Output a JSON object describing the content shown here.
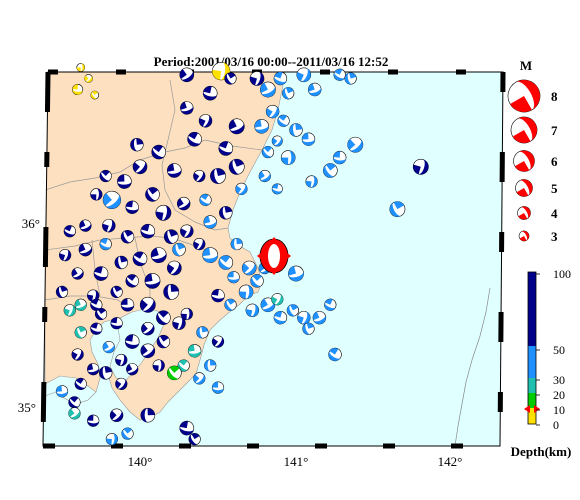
{
  "title": "Period:2001/03/16 00:00--2011/03/16 12:52",
  "axis": {
    "lon_ticks": [
      "140°",
      "141°",
      "142°"
    ],
    "lat_ticks": [
      "36°",
      "35°"
    ]
  },
  "magnitude_legend": {
    "header": "M",
    "items": [
      "8",
      "7",
      "6",
      "5",
      "4",
      "3"
    ]
  },
  "depth_scale": {
    "label": "Depth(km)",
    "ticks": [
      "100",
      "50",
      "30",
      "20",
      "10",
      "0"
    ],
    "colors": {
      "deep": "#00008b",
      "mid": "#1e90ff",
      "shallow": "#20c0b0",
      "green": "#00cc00",
      "surface": "#ffe000"
    }
  },
  "colors": {
    "land": "#fde0bf",
    "sea": "#e0ffff",
    "highlight": "#ff0000"
  },
  "events": [
    {
      "lon": 139.62,
      "lat": 36.84,
      "c": "yellow",
      "m": 3
    },
    {
      "lon": 139.67,
      "lat": 36.78,
      "c": "yellow",
      "m": 3
    },
    {
      "lon": 139.6,
      "lat": 36.72,
      "c": "yellow",
      "m": 3.2
    },
    {
      "lon": 139.71,
      "lat": 36.69,
      "c": "yellow",
      "m": 3
    },
    {
      "lon": 140.52,
      "lat": 36.82,
      "c": "yellow",
      "m": 3.8
    },
    {
      "lon": 140.3,
      "lat": 36.8,
      "c": "navy",
      "m": 3.5
    },
    {
      "lon": 140.45,
      "lat": 36.7,
      "c": "navy",
      "m": 3.5
    },
    {
      "lon": 140.58,
      "lat": 36.78,
      "c": "navy",
      "m": 3.3
    },
    {
      "lon": 140.75,
      "lat": 36.78,
      "c": "navy",
      "m": 3.5
    },
    {
      "lon": 140.82,
      "lat": 36.72,
      "c": "blue",
      "m": 3.6
    },
    {
      "lon": 140.9,
      "lat": 36.78,
      "c": "blue",
      "m": 3.4
    },
    {
      "lon": 140.95,
      "lat": 36.7,
      "c": "blue",
      "m": 3.3
    },
    {
      "lon": 141.05,
      "lat": 36.8,
      "c": "blue",
      "m": 3.5
    },
    {
      "lon": 141.12,
      "lat": 36.72,
      "c": "blue",
      "m": 3.4
    },
    {
      "lon": 141.28,
      "lat": 36.8,
      "c": "blue",
      "m": 3.3
    },
    {
      "lon": 141.35,
      "lat": 36.78,
      "c": "blue",
      "m": 3.3
    },
    {
      "lon": 140.85,
      "lat": 36.6,
      "c": "blue",
      "m": 3.4
    },
    {
      "lon": 140.78,
      "lat": 36.52,
      "c": "blue",
      "m": 3.5
    },
    {
      "lon": 140.92,
      "lat": 36.55,
      "c": "blue",
      "m": 3.3
    },
    {
      "lon": 141.0,
      "lat": 36.5,
      "c": "blue",
      "m": 3.4
    },
    {
      "lon": 140.88,
      "lat": 36.44,
      "c": "blue",
      "m": 3.2
    },
    {
      "lon": 141.08,
      "lat": 36.45,
      "c": "blue",
      "m": 3.4
    },
    {
      "lon": 140.82,
      "lat": 36.38,
      "c": "blue",
      "m": 3.3
    },
    {
      "lon": 140.95,
      "lat": 36.35,
      "c": "blue",
      "m": 3.5
    },
    {
      "lon": 141.38,
      "lat": 36.42,
      "c": "blue",
      "m": 3.6
    },
    {
      "lon": 141.28,
      "lat": 36.35,
      "c": "blue",
      "m": 3.4
    },
    {
      "lon": 141.22,
      "lat": 36.28,
      "c": "blue",
      "m": 3.5
    },
    {
      "lon": 141.1,
      "lat": 36.22,
      "c": "blue",
      "m": 3.3
    },
    {
      "lon": 140.8,
      "lat": 36.25,
      "c": "blue",
      "m": 3.3
    },
    {
      "lon": 140.88,
      "lat": 36.18,
      "c": "blue",
      "m": 3.2
    },
    {
      "lon": 141.65,
      "lat": 36.07,
      "c": "blue",
      "m": 3.6
    },
    {
      "lon": 141.8,
      "lat": 36.3,
      "c": "navy",
      "m": 3.6
    },
    {
      "lon": 140.62,
      "lat": 36.52,
      "c": "navy",
      "m": 3.6
    },
    {
      "lon": 140.55,
      "lat": 36.4,
      "c": "navy",
      "m": 3.5
    },
    {
      "lon": 140.62,
      "lat": 36.3,
      "c": "navy",
      "m": 3.6
    },
    {
      "lon": 140.42,
      "lat": 36.55,
      "c": "navy",
      "m": 3.4
    },
    {
      "lon": 140.3,
      "lat": 36.62,
      "c": "navy",
      "m": 3.4
    },
    {
      "lon": 140.35,
      "lat": 36.45,
      "c": "navy",
      "m": 3.5
    },
    {
      "lon": 140.5,
      "lat": 36.25,
      "c": "navy",
      "m": 3.6
    },
    {
      "lon": 140.38,
      "lat": 36.25,
      "c": "navy",
      "m": 3.3
    },
    {
      "lon": 140.22,
      "lat": 36.28,
      "c": "navy",
      "m": 3.5
    },
    {
      "lon": 140.12,
      "lat": 36.38,
      "c": "navy",
      "m": 3.5
    },
    {
      "lon": 139.98,
      "lat": 36.42,
      "c": "navy",
      "m": 3.4
    },
    {
      "lon": 140.0,
      "lat": 36.3,
      "c": "navy",
      "m": 3.5
    },
    {
      "lon": 139.9,
      "lat": 36.22,
      "c": "navy",
      "m": 3.5
    },
    {
      "lon": 139.78,
      "lat": 36.25,
      "c": "navy",
      "m": 3.3
    },
    {
      "lon": 139.72,
      "lat": 36.15,
      "c": "navy",
      "m": 3.3
    },
    {
      "lon": 139.82,
      "lat": 36.12,
      "c": "blue",
      "m": 3.8
    },
    {
      "lon": 139.95,
      "lat": 36.08,
      "c": "navy",
      "m": 3.4
    },
    {
      "lon": 140.08,
      "lat": 36.15,
      "c": "navy",
      "m": 3.5
    },
    {
      "lon": 140.15,
      "lat": 36.05,
      "c": "navy",
      "m": 3.6
    },
    {
      "lon": 140.28,
      "lat": 36.1,
      "c": "navy",
      "m": 3.4
    },
    {
      "lon": 140.05,
      "lat": 35.95,
      "c": "navy",
      "m": 3.5
    },
    {
      "lon": 139.92,
      "lat": 35.92,
      "c": "navy",
      "m": 3.4
    },
    {
      "lon": 139.8,
      "lat": 35.98,
      "c": "navy",
      "m": 3.4
    },
    {
      "lon": 139.65,
      "lat": 35.98,
      "c": "navy",
      "m": 3.3
    },
    {
      "lon": 139.55,
      "lat": 35.95,
      "c": "navy",
      "m": 3.3
    },
    {
      "lon": 140.2,
      "lat": 35.92,
      "c": "navy",
      "m": 3.5
    },
    {
      "lon": 140.3,
      "lat": 35.95,
      "c": "navy",
      "m": 3.4
    },
    {
      "lon": 140.12,
      "lat": 35.82,
      "c": "navy",
      "m": 3.6
    },
    {
      "lon": 140.0,
      "lat": 35.8,
      "c": "navy",
      "m": 3.5
    },
    {
      "lon": 139.88,
      "lat": 35.78,
      "c": "navy",
      "m": 3.4
    },
    {
      "lon": 140.22,
      "lat": 35.75,
      "c": "navy",
      "m": 3.5
    },
    {
      "lon": 140.08,
      "lat": 35.68,
      "c": "navy",
      "m": 3.6
    },
    {
      "lon": 139.95,
      "lat": 35.68,
      "c": "navy",
      "m": 3.4
    },
    {
      "lon": 140.2,
      "lat": 35.62,
      "c": "navy",
      "m": 3.6
    },
    {
      "lon": 140.05,
      "lat": 35.55,
      "c": "navy",
      "m": 3.6
    },
    {
      "lon": 139.92,
      "lat": 35.55,
      "c": "navy",
      "m": 3.4
    },
    {
      "lon": 140.15,
      "lat": 35.48,
      "c": "navy",
      "m": 3.5
    },
    {
      "lon": 140.3,
      "lat": 35.5,
      "c": "navy",
      "m": 3.3
    },
    {
      "lon": 140.05,
      "lat": 35.42,
      "c": "navy",
      "m": 3.4
    },
    {
      "lon": 139.85,
      "lat": 35.45,
      "c": "navy",
      "m": 3.3
    },
    {
      "lon": 139.75,
      "lat": 35.5,
      "c": "navy",
      "m": 3.3
    },
    {
      "lon": 139.7,
      "lat": 35.6,
      "c": "navy",
      "m": 3.3
    },
    {
      "lon": 139.6,
      "lat": 35.72,
      "c": "navy",
      "m": 3.3
    },
    {
      "lon": 139.75,
      "lat": 35.72,
      "c": "navy",
      "m": 3.5
    },
    {
      "lon": 139.85,
      "lat": 35.62,
      "c": "navy",
      "m": 3.3
    },
    {
      "lon": 139.52,
      "lat": 35.82,
      "c": "navy",
      "m": 3.3
    },
    {
      "lon": 139.65,
      "lat": 35.85,
      "c": "navy",
      "m": 3.4
    },
    {
      "lon": 139.78,
      "lat": 35.88,
      "c": "blue",
      "m": 3.3
    },
    {
      "lon": 140.25,
      "lat": 35.85,
      "c": "blue",
      "m": 3.4
    },
    {
      "lon": 140.38,
      "lat": 35.88,
      "c": "navy",
      "m": 3.3
    },
    {
      "lon": 140.45,
      "lat": 36.0,
      "c": "blue",
      "m": 3.4
    },
    {
      "lon": 140.42,
      "lat": 36.12,
      "c": "blue",
      "m": 3.3
    },
    {
      "lon": 140.55,
      "lat": 36.05,
      "c": "navy",
      "m": 3.4
    },
    {
      "lon": 140.65,
      "lat": 36.18,
      "c": "blue",
      "m": 3.3
    },
    {
      "lon": 140.45,
      "lat": 35.82,
      "c": "blue",
      "m": 3.6
    },
    {
      "lon": 140.55,
      "lat": 35.78,
      "c": "blue",
      "m": 3.5
    },
    {
      "lon": 140.62,
      "lat": 35.88,
      "c": "blue",
      "m": 3.3
    },
    {
      "lon": 140.7,
      "lat": 35.75,
      "c": "blue",
      "m": 3.5
    },
    {
      "lon": 140.6,
      "lat": 35.7,
      "c": "blue",
      "m": 3.3
    },
    {
      "lon": 140.75,
      "lat": 35.68,
      "c": "blue",
      "m": 3.4
    },
    {
      "lon": 140.68,
      "lat": 35.62,
      "c": "blue",
      "m": 3.5
    },
    {
      "lon": 140.8,
      "lat": 35.75,
      "c": "blue",
      "m": 3.3
    },
    {
      "lon": 140.5,
      "lat": 35.6,
      "c": "navy",
      "m": 3.4
    },
    {
      "lon": 140.58,
      "lat": 35.55,
      "c": "blue",
      "m": 3.3
    },
    {
      "lon": 140.72,
      "lat": 35.52,
      "c": "blue",
      "m": 3.4
    },
    {
      "lon": 140.82,
      "lat": 35.55,
      "c": "blue",
      "m": 3.5
    },
    {
      "lon": 140.9,
      "lat": 35.48,
      "c": "blue",
      "m": 3.4
    },
    {
      "lon": 140.98,
      "lat": 35.52,
      "c": "blue",
      "m": 3.3
    },
    {
      "lon": 141.05,
      "lat": 35.48,
      "c": "blue",
      "m": 3.4
    },
    {
      "lon": 141.15,
      "lat": 35.48,
      "c": "blue",
      "m": 3.4
    },
    {
      "lon": 141.22,
      "lat": 35.55,
      "c": "blue",
      "m": 3.3
    },
    {
      "lon": 141.08,
      "lat": 35.42,
      "c": "blue",
      "m": 3.3
    },
    {
      "lon": 140.88,
      "lat": 35.58,
      "c": "teal",
      "m": 3.3
    },
    {
      "lon": 141.0,
      "lat": 35.72,
      "c": "blue",
      "m": 3.6
    },
    {
      "lon": 141.25,
      "lat": 35.28,
      "c": "blue",
      "m": 3.4
    },
    {
      "lon": 140.4,
      "lat": 35.4,
      "c": "blue",
      "m": 3.3
    },
    {
      "lon": 140.5,
      "lat": 35.35,
      "c": "navy",
      "m": 3.3
    },
    {
      "lon": 140.35,
      "lat": 35.3,
      "c": "teal",
      "m": 3.4
    },
    {
      "lon": 140.28,
      "lat": 35.22,
      "c": "teal",
      "m": 3.3
    },
    {
      "lon": 140.45,
      "lat": 35.22,
      "c": "blue",
      "m": 3.3
    },
    {
      "lon": 140.38,
      "lat": 35.15,
      "c": "blue",
      "m": 3.3
    },
    {
      "lon": 140.5,
      "lat": 35.1,
      "c": "blue",
      "m": 3.3
    },
    {
      "lon": 140.22,
      "lat": 35.18,
      "c": "green",
      "m": 3.5
    },
    {
      "lon": 140.12,
      "lat": 35.22,
      "c": "navy",
      "m": 3.3
    },
    {
      "lon": 140.05,
      "lat": 35.3,
      "c": "navy",
      "m": 3.5
    },
    {
      "lon": 139.95,
      "lat": 35.35,
      "c": "navy",
      "m": 3.5
    },
    {
      "lon": 140.15,
      "lat": 35.35,
      "c": "navy",
      "m": 3.4
    },
    {
      "lon": 139.88,
      "lat": 35.25,
      "c": "navy",
      "m": 3.3
    },
    {
      "lon": 139.8,
      "lat": 35.32,
      "c": "blue",
      "m": 3.3
    },
    {
      "lon": 139.72,
      "lat": 35.42,
      "c": "navy",
      "m": 3.3
    },
    {
      "lon": 139.62,
      "lat": 35.4,
      "c": "teal",
      "m": 3.3
    },
    {
      "lon": 139.55,
      "lat": 35.52,
      "c": "teal",
      "m": 3.3
    },
    {
      "lon": 139.62,
      "lat": 35.55,
      "c": "teal",
      "m": 3.3
    },
    {
      "lon": 139.72,
      "lat": 35.55,
      "c": "navy",
      "m": 3.3
    },
    {
      "lon": 139.5,
      "lat": 35.62,
      "c": "navy",
      "m": 3.3
    },
    {
      "lon": 139.6,
      "lat": 35.28,
      "c": "navy",
      "m": 3.3
    },
    {
      "lon": 139.7,
      "lat": 35.2,
      "c": "navy",
      "m": 3.3
    },
    {
      "lon": 139.62,
      "lat": 35.12,
      "c": "navy",
      "m": 3.3
    },
    {
      "lon": 139.78,
      "lat": 35.18,
      "c": "navy",
      "m": 3.4
    },
    {
      "lon": 139.88,
      "lat": 35.12,
      "c": "navy",
      "m": 3.3
    },
    {
      "lon": 139.5,
      "lat": 35.08,
      "c": "blue",
      "m": 3.3
    },
    {
      "lon": 139.58,
      "lat": 35.02,
      "c": "navy",
      "m": 3.3
    },
    {
      "lon": 140.05,
      "lat": 34.95,
      "c": "navy",
      "m": 3.5
    },
    {
      "lon": 139.85,
      "lat": 34.95,
      "c": "navy",
      "m": 3.4
    },
    {
      "lon": 139.7,
      "lat": 34.92,
      "c": "navy",
      "m": 3.3
    },
    {
      "lon": 139.92,
      "lat": 34.85,
      "c": "blue",
      "m": 3.3
    },
    {
      "lon": 139.82,
      "lat": 34.82,
      "c": "blue",
      "m": 3.3
    },
    {
      "lon": 139.58,
      "lat": 34.96,
      "c": "teal",
      "m": 3.3
    },
    {
      "lon": 140.3,
      "lat": 34.88,
      "c": "navy",
      "m": 3.5
    },
    {
      "lon": 140.35,
      "lat": 34.82,
      "c": "navy",
      "m": 3.3
    },
    {
      "lon": 140.25,
      "lat": 35.45,
      "c": "navy",
      "m": 3.4
    },
    {
      "lon": 139.95,
      "lat": 35.2,
      "c": "navy",
      "m": 3.3
    }
  ]
}
